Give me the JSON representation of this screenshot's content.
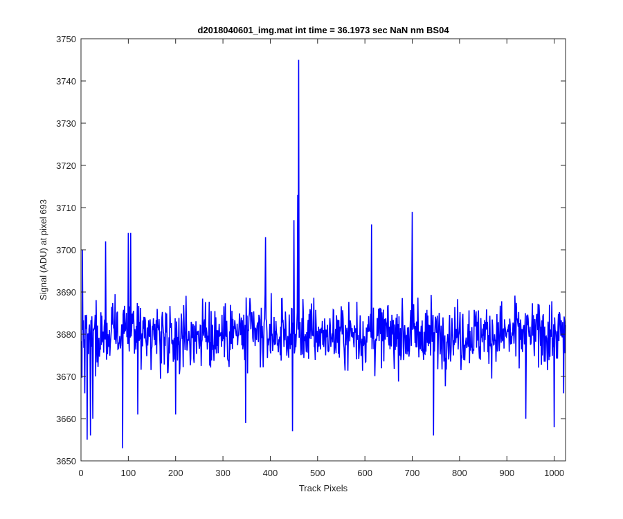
{
  "chart_data": {
    "type": "line",
    "title": "d2018040601_img.mat int time = 36.1973 sec  NaN nm BS04",
    "xlabel": "Track Pixels",
    "ylabel": "Signal (ADU) at pixel 693",
    "xlim": [
      0,
      1024
    ],
    "ylim": [
      3650,
      3750
    ],
    "xticks": [
      "0",
      "100",
      "200",
      "300",
      "400",
      "500",
      "600",
      "700",
      "800",
      "900",
      "1000"
    ],
    "yticks": [
      "3650",
      "3660",
      "3670",
      "3680",
      "3690",
      "3700",
      "3710",
      "3720",
      "3730",
      "3740",
      "3750"
    ],
    "grid": false,
    "legend": "none",
    "series": [
      {
        "color": "#0000ff",
        "x_start": 1,
        "x_end": 1024,
        "baseline": 3680,
        "noise_amplitude": 12,
        "anchor_points": [
          {
            "x": 3,
            "y": 3700
          },
          {
            "x": 8,
            "y": 3666
          },
          {
            "x": 13,
            "y": 3655
          },
          {
            "x": 20,
            "y": 3656
          },
          {
            "x": 25,
            "y": 3660
          },
          {
            "x": 52,
            "y": 3702
          },
          {
            "x": 88,
            "y": 3653
          },
          {
            "x": 100,
            "y": 3704
          },
          {
            "x": 105,
            "y": 3704
          },
          {
            "x": 120,
            "y": 3661
          },
          {
            "x": 200,
            "y": 3661
          },
          {
            "x": 348,
            "y": 3659
          },
          {
            "x": 390,
            "y": 3703
          },
          {
            "x": 447,
            "y": 3657
          },
          {
            "x": 450,
            "y": 3707
          },
          {
            "x": 458,
            "y": 3713
          },
          {
            "x": 460,
            "y": 3745
          },
          {
            "x": 614,
            "y": 3706
          },
          {
            "x": 700,
            "y": 3709
          },
          {
            "x": 745,
            "y": 3656
          },
          {
            "x": 940,
            "y": 3660
          },
          {
            "x": 1000,
            "y": 3658
          },
          {
            "x": 1020,
            "y": 3666
          }
        ]
      }
    ]
  }
}
